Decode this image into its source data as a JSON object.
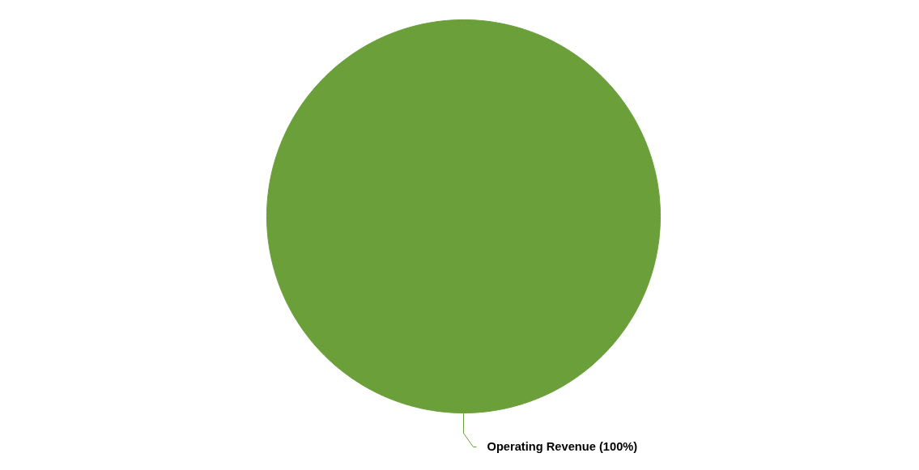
{
  "chart_data": {
    "type": "pie",
    "categories": [
      "Operating Revenue"
    ],
    "values": [
      100
    ],
    "colors": [
      "#6a9f3a"
    ],
    "value_labels": [
      "(100%)"
    ]
  }
}
